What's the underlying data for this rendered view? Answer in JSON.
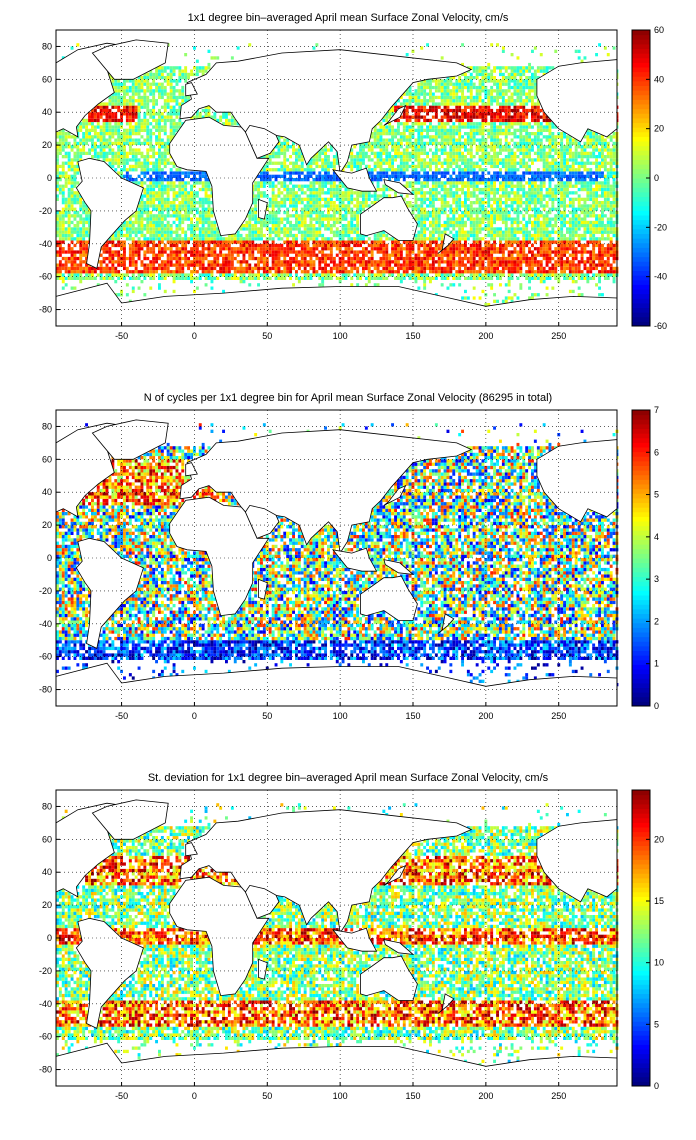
{
  "chart_data": [
    {
      "type": "heatmap",
      "title": "1x1 degree bin–averaged April mean Surface Zonal Velocity, cm/s",
      "x_ticks": [
        -50,
        0,
        50,
        100,
        150,
        200,
        250
      ],
      "y_ticks": [
        80,
        60,
        40,
        20,
        0,
        -20,
        -40,
        -60,
        -80
      ],
      "xlim": [
        -95,
        290
      ],
      "ylim": [
        -90,
        90
      ],
      "colorbar": {
        "ticks": [
          60,
          40,
          20,
          0,
          -20,
          -40,
          -60
        ],
        "range": [
          -60,
          60
        ],
        "colormap": "jet"
      },
      "features": [
        "equatorial westward current (blue)",
        "Antarctic Circumpolar Current eastward (red)",
        "Kuroshio/Gulf Stream eastward"
      ],
      "grid": "dotted",
      "legend": "colorbar-right"
    },
    {
      "type": "heatmap",
      "title": "N of cycles per 1x1 degree bin for April mean Surface Zonal Velocity (86295 in total)",
      "x_ticks": [
        -50,
        0,
        50,
        100,
        150,
        200,
        250
      ],
      "y_ticks": [
        80,
        60,
        40,
        20,
        0,
        -20,
        -40,
        -60,
        -80
      ],
      "xlim": [
        -95,
        290
      ],
      "ylim": [
        -90,
        90
      ],
      "colorbar": {
        "ticks": [
          7,
          6,
          5,
          4,
          3,
          2,
          1,
          0
        ],
        "range": [
          0,
          7
        ],
        "colormap": "jet"
      },
      "grid": "dotted",
      "legend": "colorbar-right"
    },
    {
      "type": "heatmap",
      "title": "St. deviation for 1x1 degree bin–averaged April mean Surface Zonal Velocity, cm/s",
      "x_ticks": [
        -50,
        0,
        50,
        100,
        150,
        200,
        250
      ],
      "y_ticks": [
        80,
        60,
        40,
        20,
        0,
        -20,
        -40,
        -60,
        -80
      ],
      "xlim": [
        -95,
        290
      ],
      "ylim": [
        -90,
        90
      ],
      "colorbar": {
        "ticks": [
          20,
          15,
          10,
          5,
          0
        ],
        "range": [
          0,
          24
        ],
        "colormap": "jet"
      },
      "grid": "dotted",
      "legend": "colorbar-right"
    }
  ],
  "colors": {
    "land": "#ffffff",
    "coast": "#000000",
    "grid": "#000000"
  }
}
